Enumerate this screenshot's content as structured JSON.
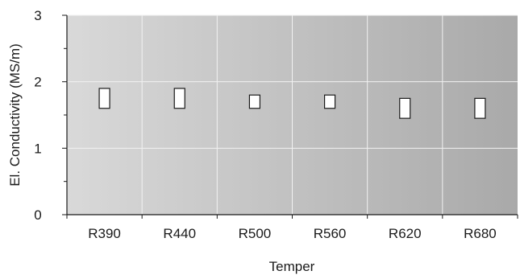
{
  "chart_data": {
    "type": "bar",
    "title": "",
    "xlabel": "Temper",
    "ylabel": "El. Conductivity (MS/m)",
    "ylim": [
      0,
      3
    ],
    "yticks": [
      0,
      1,
      2,
      3
    ],
    "grid": true,
    "categories": [
      "R390",
      "R440",
      "R500",
      "R560",
      "R620",
      "R680"
    ],
    "ranges": [
      {
        "low": 1.6,
        "high": 1.9
      },
      {
        "low": 1.6,
        "high": 1.9
      },
      {
        "low": 1.6,
        "high": 1.8
      },
      {
        "low": 1.6,
        "high": 1.8
      },
      {
        "low": 1.45,
        "high": 1.75
      },
      {
        "low": 1.45,
        "high": 1.75
      }
    ]
  },
  "colors": {
    "background_light": "#d9d9d9",
    "background_dark": "#a9a9a9",
    "grid": "#f2f2f2",
    "axis": "#1a1a1a",
    "box_fill": "#ffffff",
    "box_stroke": "#1a1a1a"
  }
}
